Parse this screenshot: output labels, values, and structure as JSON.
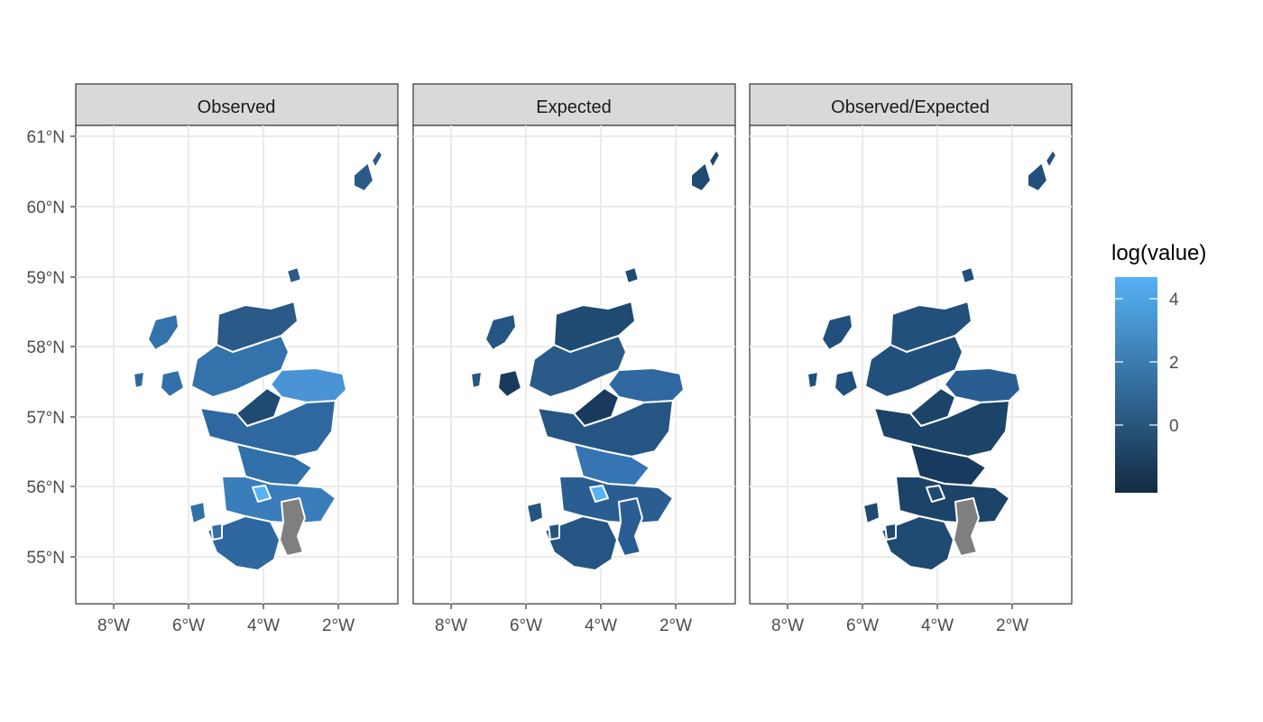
{
  "panels": [
    {
      "label": "Observed"
    },
    {
      "label": "Expected"
    },
    {
      "label": "Observed/Expected"
    }
  ],
  "axes": {
    "y_ticks": [
      "61°N",
      "60°N",
      "59°N",
      "58°N",
      "57°N",
      "56°N",
      "55°N"
    ],
    "x_ticks": [
      "8°W",
      "6°W",
      "4°W",
      "2°W"
    ]
  },
  "legend": {
    "title": "log(value)",
    "ticks": [
      "4",
      "2",
      "0"
    ]
  },
  "colors": {
    "strip_bg": "#d9d9d9",
    "panel_border": "#333333",
    "grid": "#ebebeb",
    "boundary": "#ffffff",
    "missing": "#7f7f7f",
    "low": "#132b43",
    "high": "#56b1f7"
  }
}
